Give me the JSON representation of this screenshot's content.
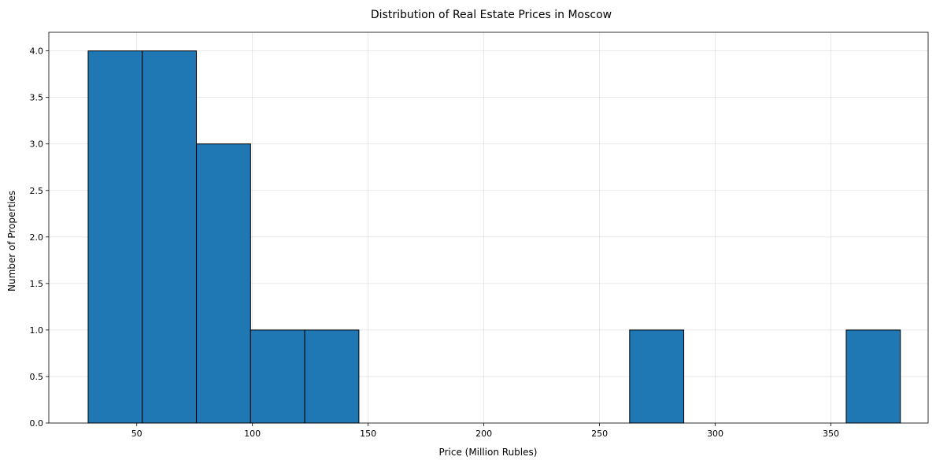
{
  "chart_data": {
    "type": "bar",
    "title": "Distribution of Real Estate Prices in Moscow",
    "xlabel": "Price (Million Rubles)",
    "ylabel": "Number of Properties",
    "xlim": [
      12,
      392
    ],
    "ylim": [
      0,
      4.2
    ],
    "xticks": [
      50,
      100,
      150,
      200,
      250,
      300,
      350
    ],
    "yticks": [
      0.0,
      0.5,
      1.0,
      1.5,
      2.0,
      2.5,
      3.0,
      3.5,
      4.0
    ],
    "xtick_labels": [
      "50",
      "100",
      "150",
      "200",
      "250",
      "300",
      "350"
    ],
    "ytick_labels": [
      "0.0",
      "0.5",
      "1.0",
      "1.5",
      "2.0",
      "2.5",
      "3.0",
      "3.5",
      "4.0"
    ],
    "bins": [
      {
        "x0": 29.0,
        "x1": 52.4,
        "count": 4
      },
      {
        "x0": 52.4,
        "x1": 75.8,
        "count": 4
      },
      {
        "x0": 75.8,
        "x1": 99.2,
        "count": 3
      },
      {
        "x0": 99.2,
        "x1": 122.6,
        "count": 1
      },
      {
        "x0": 122.6,
        "x1": 146.0,
        "count": 1
      },
      {
        "x0": 146.0,
        "x1": 169.4,
        "count": 0
      },
      {
        "x0": 169.4,
        "x1": 192.8,
        "count": 0
      },
      {
        "x0": 192.8,
        "x1": 216.2,
        "count": 0
      },
      {
        "x0": 216.2,
        "x1": 239.6,
        "count": 0
      },
      {
        "x0": 239.6,
        "x1": 263.0,
        "count": 0
      },
      {
        "x0": 263.0,
        "x1": 286.4,
        "count": 1
      },
      {
        "x0": 286.4,
        "x1": 309.8,
        "count": 0
      },
      {
        "x0": 309.8,
        "x1": 333.2,
        "count": 0
      },
      {
        "x0": 333.2,
        "x1": 356.6,
        "count": 0
      },
      {
        "x0": 356.6,
        "x1": 380.0,
        "count": 1
      }
    ],
    "bar_color": "#1f77b4",
    "edge_color": "#000000",
    "grid": true,
    "legend": "none"
  }
}
